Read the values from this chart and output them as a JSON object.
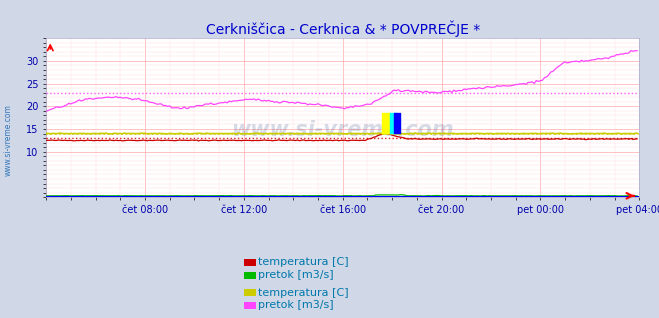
{
  "title": "Cerkniščica - Cerknica & * POVPREČJE *",
  "title_color": "#0000cc",
  "title_fontsize": 10,
  "bg_color": "#d0d8e8",
  "plot_bg_color": "#ffffff",
  "grid_color_major": "#ffaaaa",
  "grid_color_minor": "#ffdddd",
  "watermark": "www.si-vreme.com",
  "watermark_color": "#1a3a7a",
  "watermark_alpha": 0.18,
  "xlabel_color": "#0000aa",
  "ylabel_color": "#0000aa",
  "xlabels": [
    "čet 08:00",
    "čet 12:00",
    "čet 16:00",
    "čet 20:00",
    "pet 00:00",
    "pet 04:00"
  ],
  "ylim": [
    0,
    35
  ],
  "yticks": [
    10,
    15,
    20,
    25,
    30
  ],
  "n_points": 288,
  "temp1_color": "#cc0000",
  "flow1_color": "#00bb00",
  "temp2_color": "#cccc00",
  "flow2_color": "#ff44ff",
  "temp1_mean": 13.0,
  "temp2_mean": 14.0,
  "flow2_mean": 23.0,
  "legend_text_color": "#0077aa",
  "legend_fontsize": 8,
  "side_label": "www.si-vreme.com",
  "side_label_color": "#0055aa"
}
